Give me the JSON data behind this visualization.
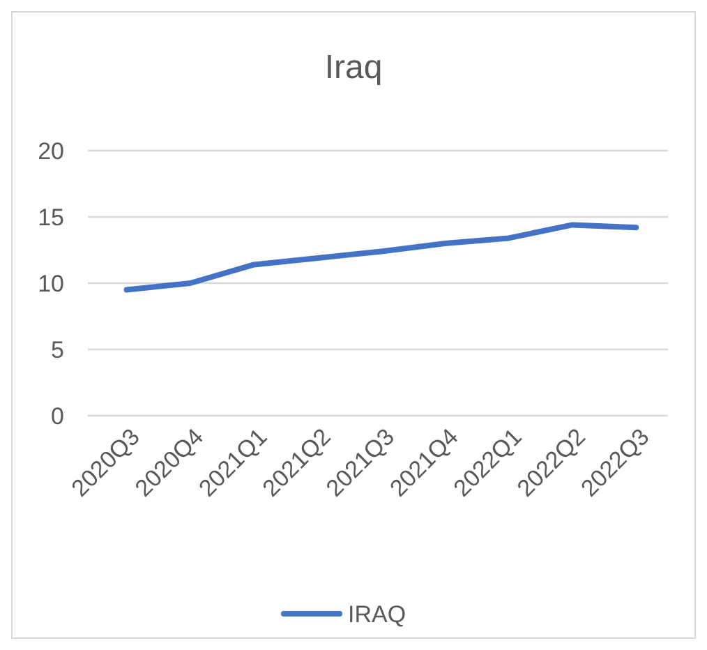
{
  "chart_data": {
    "type": "line",
    "title": "Iraq",
    "categories": [
      "2020Q3",
      "2020Q4",
      "2021Q1",
      "2021Q2",
      "2021Q3",
      "2021Q4",
      "2022Q1",
      "2022Q2",
      "2022Q3"
    ],
    "series": [
      {
        "name": "IRAQ",
        "color": "#4472c4",
        "values": [
          9.5,
          10.0,
          11.4,
          11.9,
          12.4,
          13.0,
          13.4,
          14.4,
          14.2
        ]
      }
    ],
    "ylim": [
      0,
      20
    ],
    "yticks": [
      0,
      5,
      10,
      15,
      20
    ],
    "grid": "y",
    "legend": "bottom",
    "marker": "none",
    "line_style": "solid"
  }
}
